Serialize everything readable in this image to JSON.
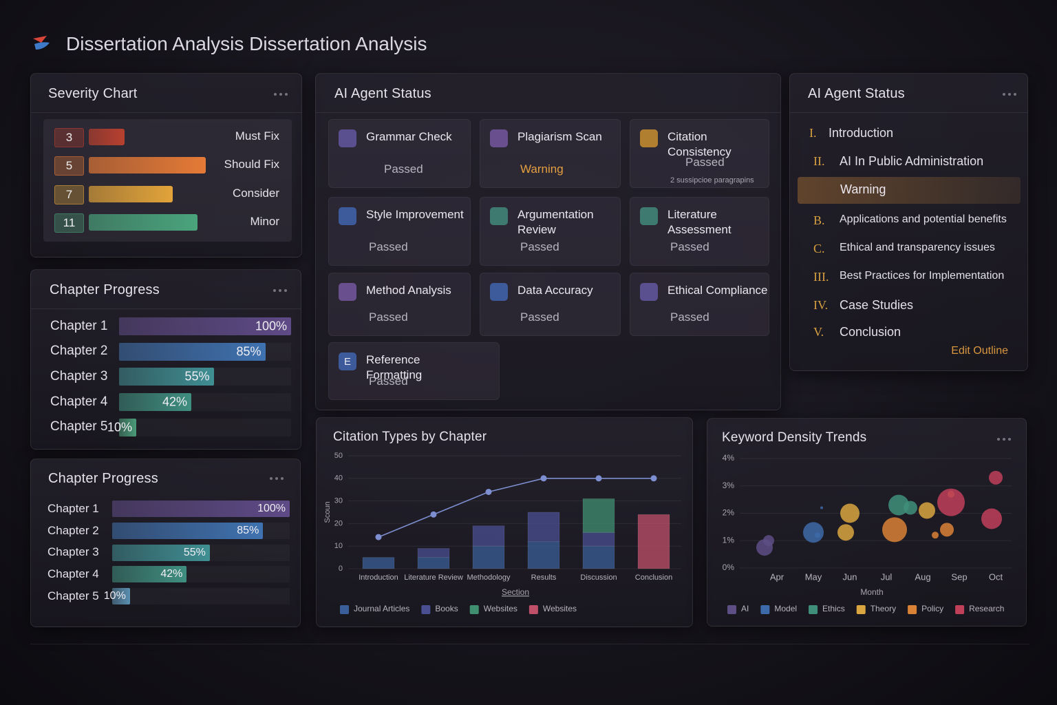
{
  "header": {
    "title": "Dissertation Analysis Dissertation Analysis"
  },
  "severity": {
    "title": "Severity Chart",
    "items": [
      {
        "count": 3,
        "label": "Must Fix",
        "color": "#b8402f"
      },
      {
        "count": 5,
        "label": "Should Fix",
        "color": "#e57a36"
      },
      {
        "count": 7,
        "label": "Consider",
        "color": "#e2a43a"
      },
      {
        "count": 11,
        "label": "Minor",
        "color": "#4aa47c"
      }
    ]
  },
  "chapter_progress": [
    {
      "title": "Chapter Progress",
      "rows": [
        {
          "label": "Chapter 1",
          "value": 100,
          "value_label": "100%",
          "color": "#5e4a86"
        },
        {
          "label": "Chapter 2",
          "value": 85,
          "value_label": "85%",
          "color": "#3f72b0"
        },
        {
          "label": "Chapter 3",
          "value": 55,
          "value_label": "55%",
          "color": "#3f8f93"
        },
        {
          "label": "Chapter 4",
          "value": 42,
          "value_label": "42%",
          "color": "#3f8f80"
        },
        {
          "label": "Chapter 5",
          "value": 10,
          "value_label": "10%",
          "color": "#4a9a78"
        }
      ]
    },
    {
      "title": "Chapter Progress",
      "rows": [
        {
          "label": "Chapter 1",
          "value": 100,
          "value_label": "100%",
          "color": "#5e4a86"
        },
        {
          "label": "Chapter 2",
          "value": 85,
          "value_label": "85%",
          "color": "#3f72b0"
        },
        {
          "label": "Chapter 3",
          "value": 55,
          "value_label": "55%",
          "color": "#3f8f93"
        },
        {
          "label": "Chapter 4",
          "value": 42,
          "value_label": "42%",
          "color": "#3f8f80"
        },
        {
          "label": "Chapter 5",
          "value": 10,
          "value_label": "10%",
          "color": "#5a8fb0"
        }
      ]
    }
  ],
  "agent_status": {
    "title": "AI Agent Status",
    "cards": [
      {
        "title": "Grammar Check",
        "status": "Passed"
      },
      {
        "title": "Plagiarism Scan",
        "status": "Warning"
      },
      {
        "title": "Citation Consistency",
        "status": "Passed",
        "note": "2 sussipcioe paragrapins"
      },
      {
        "title": "Style Improvement",
        "status": "Passed"
      },
      {
        "title": "Argumentation Review",
        "status": "Passed"
      },
      {
        "title": "Literature Assessment",
        "status": "Passed"
      },
      {
        "title": "Method Analysis",
        "status": "Passed"
      },
      {
        "title": "Data Accuracy",
        "status": "Passed"
      },
      {
        "title": "Ethical Compliance",
        "status": "Passed"
      },
      {
        "title": "Reference Formatting",
        "status": "Passed",
        "icon_text": "E"
      }
    ]
  },
  "outline": {
    "title": "AI Agent Status",
    "items": [
      {
        "marker": "I.",
        "text": "Introduction"
      },
      {
        "marker": "II.",
        "text": "AI In Public Administration"
      },
      {
        "text": "Warning",
        "highlight": true
      },
      {
        "marker": "B.",
        "text": "Applications and potential benefits"
      },
      {
        "marker": "C.",
        "text": "Ethical and transparency issues"
      },
      {
        "marker": "III.",
        "text": "Best Practices for Implementation"
      },
      {
        "marker": "IV.",
        "text": "Case Studies"
      },
      {
        "marker": "V.",
        "text": "Conclusion"
      }
    ],
    "link": "Edit Outline"
  },
  "chart_data": [
    {
      "type": "bar",
      "title": "Citation Types by Chapter",
      "categories": [
        "Introduction",
        "Literature Review",
        "Methodology",
        "Results",
        "Discussion",
        "Conclusion"
      ],
      "x_label": "Section",
      "y_label": "Scoun",
      "stacked": true,
      "grid": true,
      "ylim": [
        0,
        50
      ],
      "yticks": [
        0,
        10,
        20,
        30,
        40,
        50
      ],
      "series": [
        {
          "name": "Journal Articles",
          "color": "#3a5f98",
          "values": [
            5,
            5,
            10,
            12,
            10,
            0
          ]
        },
        {
          "name": "Books",
          "color": "#4a4f92",
          "values": [
            0,
            4,
            9,
            13,
            6,
            0
          ]
        },
        {
          "name": "Websites",
          "color": "#3f8f70",
          "values": [
            0,
            0,
            0,
            0,
            15,
            0
          ]
        },
        {
          "name": "Websites",
          "color": "#c0506a",
          "values": [
            0,
            0,
            0,
            0,
            0,
            24
          ]
        }
      ],
      "line": {
        "color": "#7d8fd0",
        "values": [
          14,
          24,
          34,
          40,
          40,
          40
        ]
      }
    },
    {
      "type": "scatter",
      "title": "Keyword Density Trends",
      "categories": [
        "Apr",
        "May",
        "Jun",
        "Jul",
        "Aug",
        "Sep",
        "Oct"
      ],
      "x_label": "Month",
      "grid": true,
      "ylim": [
        0,
        4
      ],
      "yticks": [
        {
          "value": 0,
          "label": "0%"
        },
        {
          "value": 1,
          "label": "1%"
        },
        {
          "value": 2,
          "label": "2%"
        },
        {
          "value": 3,
          "label": "3%"
        },
        {
          "value": 4,
          "label": "4%"
        }
      ],
      "series": [
        {
          "name": "AI",
          "color": "#5d4f85",
          "x": [
            "Apr",
            "Apr"
          ],
          "values": [
            0.75,
            1.0
          ],
          "sizes": [
            12,
            8
          ]
        },
        {
          "name": "Model",
          "color": "#3d6aa8",
          "x": [
            "May",
            "May",
            "May"
          ],
          "values": [
            1.3,
            1.2,
            2.2
          ],
          "sizes": [
            15,
            4,
            2
          ]
        },
        {
          "name": "Ethics",
          "color": "#3f8f7a",
          "x": [
            "Jul",
            "Aug"
          ],
          "values": [
            2.3,
            2.2
          ],
          "sizes": [
            15,
            10
          ]
        },
        {
          "name": "Theory",
          "color": "#d9a640",
          "x": [
            "Jun",
            "Jun",
            "Aug"
          ],
          "values": [
            1.3,
            2.0,
            2.1
          ],
          "sizes": [
            12,
            14,
            12
          ]
        },
        {
          "name": "Policy",
          "color": "#d98236",
          "x": [
            "Jul",
            "Aug",
            "Sep",
            "Sep"
          ],
          "values": [
            1.4,
            1.2,
            1.4,
            2.7
          ],
          "sizes": [
            18,
            5,
            10,
            5
          ]
        },
        {
          "name": "Research",
          "color": "#c0405a",
          "x": [
            "Sep",
            "Oct",
            "Oct"
          ],
          "values": [
            2.4,
            1.8,
            3.3
          ],
          "sizes": [
            20,
            15,
            10
          ]
        }
      ]
    }
  ]
}
